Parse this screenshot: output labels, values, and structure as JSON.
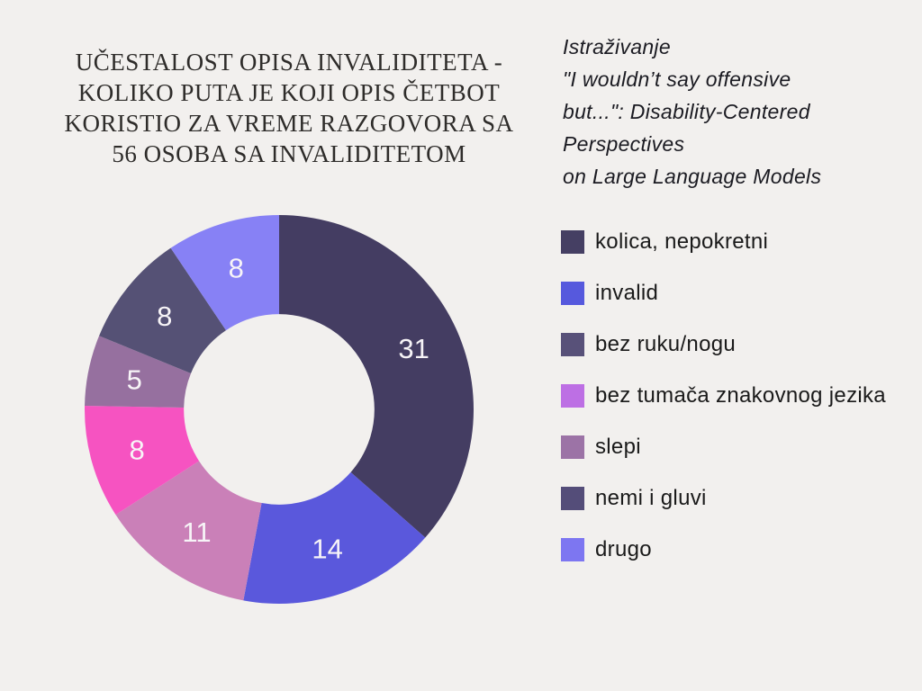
{
  "canvas": {
    "background": "#f2f0ee"
  },
  "title": {
    "color": "#2e2c2a",
    "text": "UČESTALOST OPISA INVALIDITETA - KOLIKO PUTA JE KOJI OPIS ČETBOT KORISTIO ZA VREME RAZGOVORA SA 56 OSOBA SA INVALIDITETOM",
    "lines": [
      "UČESTALOST OPISA INVALIDITETA -",
      "KOLIKO PUTA JE KOJI OPIS ČETBOT",
      "KORISTIO ZA VREME RAZGOVORA SA",
      "56 OSOBA SA INVALIDITETOM"
    ]
  },
  "subtitle": {
    "color": "#1b1b22",
    "lines": [
      "Istraživanje",
      "\"I wouldn’t say offensive",
      "but...\": Disability-Centered",
      "Perspectives",
      "on Large Language Models"
    ]
  },
  "legend": {
    "text_color": "#1a1a1a",
    "items": [
      {
        "label": "kolica, nepokretni",
        "swatch_color": "#453f63"
      },
      {
        "label": "invalid",
        "swatch_color": "#5659dd"
      },
      {
        "label": "bez ruku/nogu",
        "swatch_color": "#585179"
      },
      {
        "label": "bez tumača znakovnog jezika",
        "swatch_color": "#bd6fe4"
      },
      {
        "label": "slepi",
        "swatch_color": "#9c73a6"
      },
      {
        "label": "nemi i gluvi",
        "swatch_color": "#544d79"
      },
      {
        "label": "drugo",
        "swatch_color": "#7d76f1"
      }
    ]
  },
  "chart_data": {
    "type": "pie",
    "donut": true,
    "title": "UČESTALOST OPISA INVALIDITETA - KOLIKO PUTA JE KOJI OPIS ČETBOT KORISTIO ZA VREME RAZGOVORA SA 56 OSOBA SA INVALIDITETOM",
    "categories": [
      "kolica, nepokretni",
      "invalid",
      "bez ruku/nogu",
      "bez tumača znakovnog jezika",
      "slepi",
      "nemi i gluvi",
      "drugo"
    ],
    "values": [
      31,
      14,
      11,
      8,
      5,
      8,
      8
    ],
    "slice_colors": [
      "#443d62",
      "#5a58dc",
      "#ca80b8",
      "#f653c1",
      "#96709f",
      "#555175",
      "#8781f5"
    ],
    "value_label_color": "#f7f4f7",
    "value_label_size": 31,
    "start_angle_deg": 0,
    "direction": "clockwise",
    "inner_radius_ratio": 0.49,
    "legend_position": "right"
  }
}
